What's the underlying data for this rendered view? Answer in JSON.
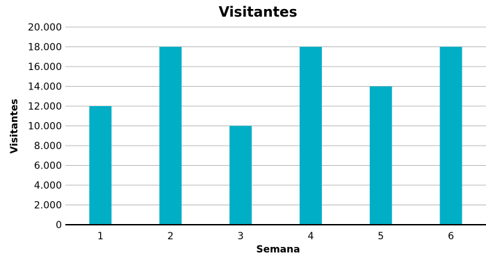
{
  "chart_data": {
    "type": "bar",
    "title": "Visitantes",
    "xlabel": "Semana",
    "ylabel": "Visitantes",
    "categories": [
      "1",
      "2",
      "3",
      "4",
      "5",
      "6"
    ],
    "values": [
      12000,
      18000,
      10000,
      18000,
      14000,
      18000
    ],
    "ylim": [
      0,
      20000
    ],
    "yticks": [
      0,
      2000,
      4000,
      6000,
      8000,
      10000,
      12000,
      14000,
      16000,
      18000,
      20000
    ],
    "ytick_labels": [
      "0",
      "2.000",
      "4.000",
      "6.000",
      "8.000",
      "10.000",
      "12.000",
      "14.000",
      "16.000",
      "18.000",
      "20.000"
    ],
    "grid": true,
    "legend": "none",
    "bar_color": "#00aec5"
  }
}
